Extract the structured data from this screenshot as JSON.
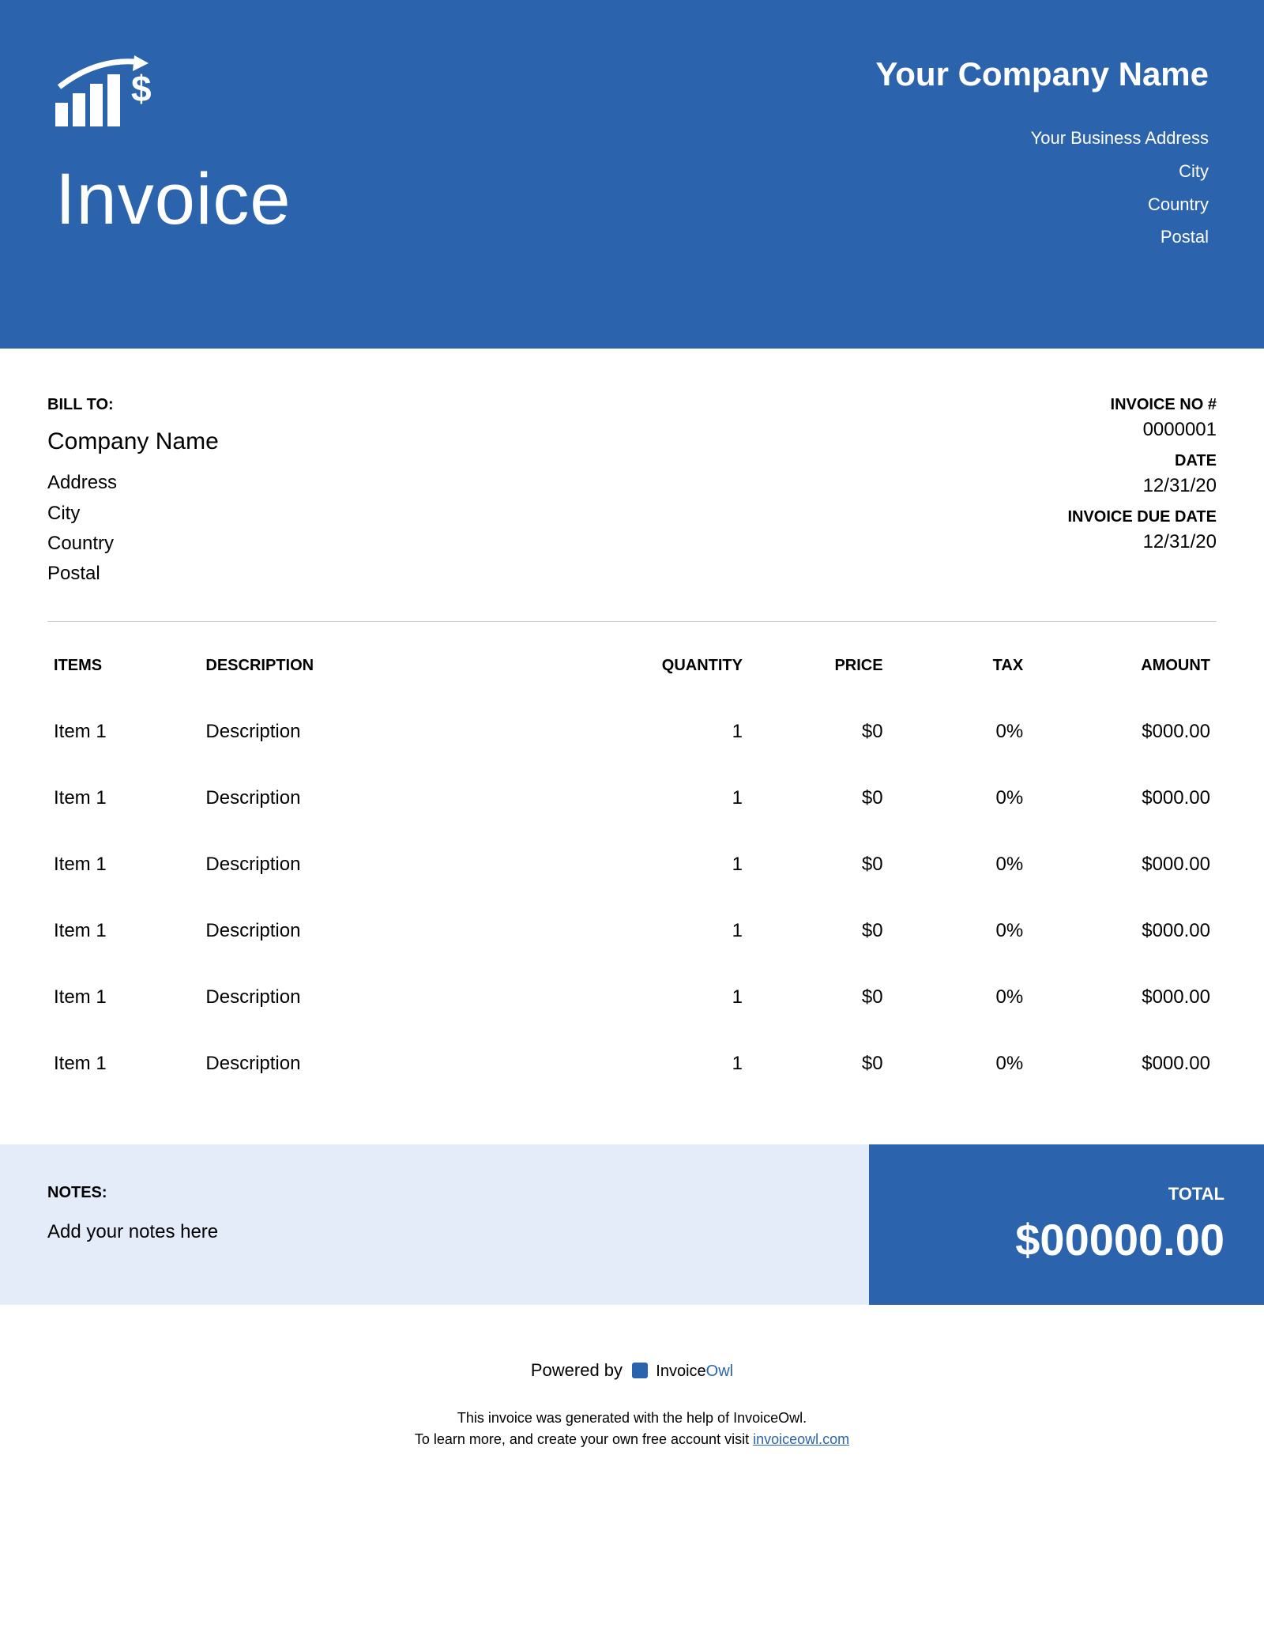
{
  "colors": {
    "primary": "#2b63ac",
    "notes_bg": "#e4ecf9",
    "divider": "#c9c9c9",
    "white": "#ffffff"
  },
  "header": {
    "title": "Invoice",
    "company_name": "Your Company Name",
    "address": "Your Business Address",
    "city": "City",
    "country": "Country",
    "postal": "Postal"
  },
  "bill_to": {
    "label": "BILL TO:",
    "company": "Company Name",
    "address": "Address",
    "city": "City",
    "country": "Country",
    "postal": "Postal"
  },
  "meta": {
    "invoice_no_label": "INVOICE NO #",
    "invoice_no": "0000001",
    "date_label": "DATE",
    "date": "12/31/20",
    "due_label": "INVOICE DUE DATE",
    "due": "12/31/20"
  },
  "columns": {
    "items": "ITEMS",
    "description": "DESCRIPTION",
    "quantity": "QUANTITY",
    "price": "PRICE",
    "tax": "TAX",
    "amount": "AMOUNT"
  },
  "rows": [
    {
      "item": "Item 1",
      "description": "Description",
      "quantity": "1",
      "price": "$0",
      "tax": "0%",
      "amount": "$000.00"
    },
    {
      "item": "Item 1",
      "description": "Description",
      "quantity": "1",
      "price": "$0",
      "tax": "0%",
      "amount": "$000.00"
    },
    {
      "item": "Item 1",
      "description": "Description",
      "quantity": "1",
      "price": "$0",
      "tax": "0%",
      "amount": "$000.00"
    },
    {
      "item": "Item 1",
      "description": "Description",
      "quantity": "1",
      "price": "$0",
      "tax": "0%",
      "amount": "$000.00"
    },
    {
      "item": "Item 1",
      "description": "Description",
      "quantity": "1",
      "price": "$0",
      "tax": "0%",
      "amount": "$000.00"
    },
    {
      "item": "Item 1",
      "description": "Description",
      "quantity": "1",
      "price": "$0",
      "tax": "0%",
      "amount": "$000.00"
    }
  ],
  "notes": {
    "label": "NOTES:",
    "text": "Add your notes here"
  },
  "total": {
    "label": "TOTAL",
    "amount": "$00000.00"
  },
  "powered": {
    "prefix": "Powered by",
    "brand_a": "Invoice",
    "brand_b": "Owl",
    "line1": "This invoice was generated with the help of InvoiceOwl.",
    "line2_a": "To learn more, and create your own free account visit ",
    "link": "invoiceowl.com"
  }
}
